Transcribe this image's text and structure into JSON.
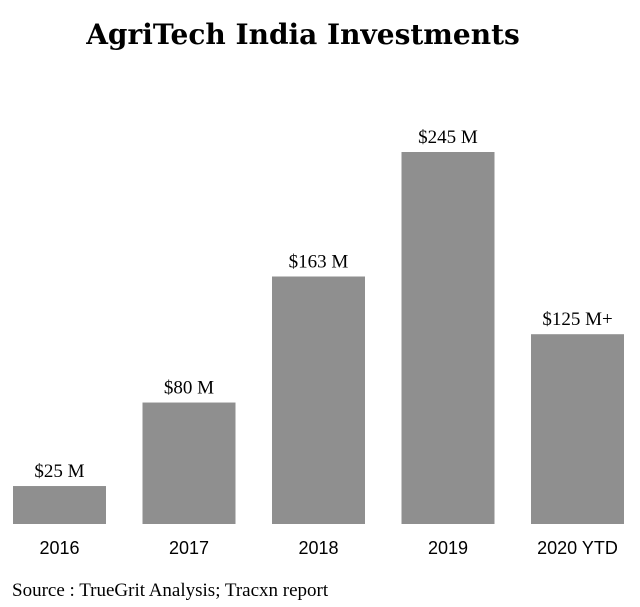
{
  "chart_data": {
    "type": "bar",
    "title": "AgriTech India Investments",
    "categories": [
      "2016",
      "2017",
      "2018",
      "2019",
      "2020 YTD"
    ],
    "values": [
      25,
      80,
      163,
      245,
      125
    ],
    "data_labels": [
      "$25 M",
      "$80 M",
      "$163 M",
      "$245 M",
      "$125 M+"
    ],
    "unit": "$ M",
    "xlabel": "",
    "ylabel": "",
    "ylim": [
      0,
      245
    ],
    "grid": false,
    "legend": "none",
    "bar_color": "#8f8f8f"
  },
  "footer": {
    "source": "Source : TrueGrit Analysis; Tracxn report"
  }
}
